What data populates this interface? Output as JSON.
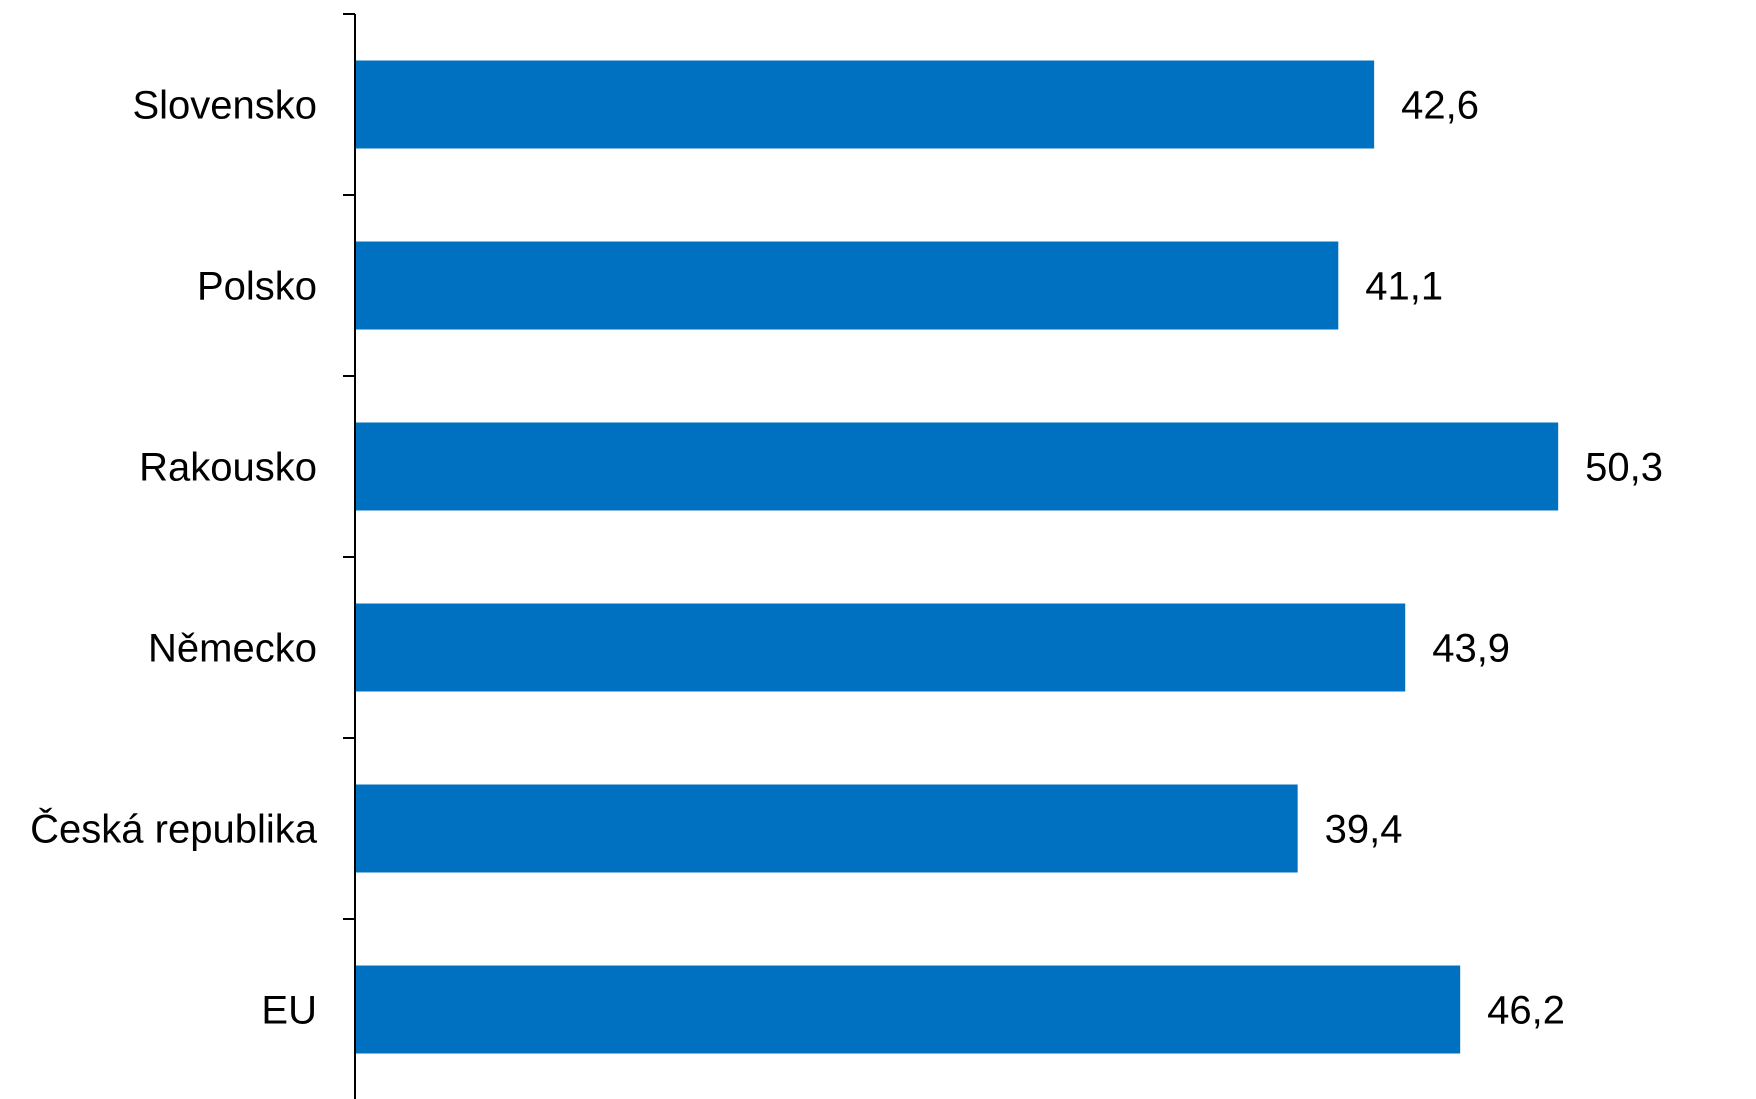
{
  "chart_data": {
    "type": "bar",
    "orientation": "horizontal",
    "title": "",
    "xlabel": "",
    "ylabel": "",
    "categories": [
      "Slovensko",
      "Polsko",
      "Rakousko",
      "Německo",
      "Česká republika",
      "EU"
    ],
    "values": [
      42.6,
      41.1,
      50.3,
      43.9,
      39.4,
      46.2
    ],
    "value_labels": [
      "42,6",
      "41,1",
      "50,3",
      "43,9",
      "39,4",
      "46,2"
    ],
    "xlim": [
      0,
      55
    ],
    "grid": false,
    "legend": "none",
    "bar_color": "#0070C0"
  }
}
